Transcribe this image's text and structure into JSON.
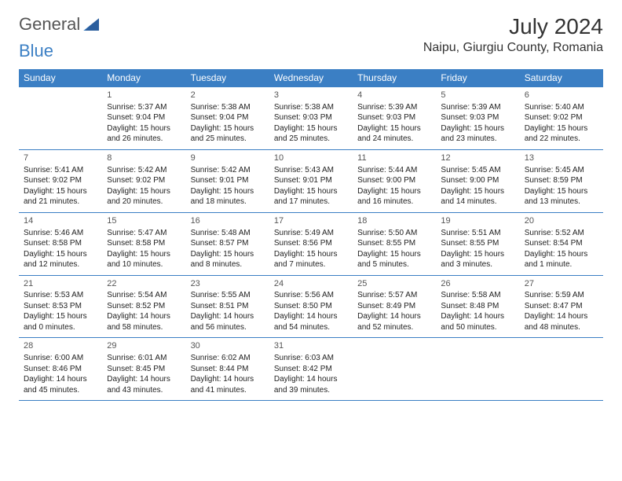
{
  "brand": {
    "part1": "General",
    "part2": "Blue"
  },
  "title": "July 2024",
  "location": "Naipu, Giurgiu County, Romania",
  "colors": {
    "header_bg": "#3b7fc4",
    "header_text": "#ffffff",
    "rule": "#3b7fc4",
    "text": "#222222",
    "daynum": "#555555",
    "page_bg": "#ffffff"
  },
  "weekdays": [
    "Sunday",
    "Monday",
    "Tuesday",
    "Wednesday",
    "Thursday",
    "Friday",
    "Saturday"
  ],
  "weeks": [
    [
      null,
      {
        "n": "1",
        "sr": "Sunrise: 5:37 AM",
        "ss": "Sunset: 9:04 PM",
        "d1": "Daylight: 15 hours",
        "d2": "and 26 minutes."
      },
      {
        "n": "2",
        "sr": "Sunrise: 5:38 AM",
        "ss": "Sunset: 9:04 PM",
        "d1": "Daylight: 15 hours",
        "d2": "and 25 minutes."
      },
      {
        "n": "3",
        "sr": "Sunrise: 5:38 AM",
        "ss": "Sunset: 9:03 PM",
        "d1": "Daylight: 15 hours",
        "d2": "and 25 minutes."
      },
      {
        "n": "4",
        "sr": "Sunrise: 5:39 AM",
        "ss": "Sunset: 9:03 PM",
        "d1": "Daylight: 15 hours",
        "d2": "and 24 minutes."
      },
      {
        "n": "5",
        "sr": "Sunrise: 5:39 AM",
        "ss": "Sunset: 9:03 PM",
        "d1": "Daylight: 15 hours",
        "d2": "and 23 minutes."
      },
      {
        "n": "6",
        "sr": "Sunrise: 5:40 AM",
        "ss": "Sunset: 9:02 PM",
        "d1": "Daylight: 15 hours",
        "d2": "and 22 minutes."
      }
    ],
    [
      {
        "n": "7",
        "sr": "Sunrise: 5:41 AM",
        "ss": "Sunset: 9:02 PM",
        "d1": "Daylight: 15 hours",
        "d2": "and 21 minutes."
      },
      {
        "n": "8",
        "sr": "Sunrise: 5:42 AM",
        "ss": "Sunset: 9:02 PM",
        "d1": "Daylight: 15 hours",
        "d2": "and 20 minutes."
      },
      {
        "n": "9",
        "sr": "Sunrise: 5:42 AM",
        "ss": "Sunset: 9:01 PM",
        "d1": "Daylight: 15 hours",
        "d2": "and 18 minutes."
      },
      {
        "n": "10",
        "sr": "Sunrise: 5:43 AM",
        "ss": "Sunset: 9:01 PM",
        "d1": "Daylight: 15 hours",
        "d2": "and 17 minutes."
      },
      {
        "n": "11",
        "sr": "Sunrise: 5:44 AM",
        "ss": "Sunset: 9:00 PM",
        "d1": "Daylight: 15 hours",
        "d2": "and 16 minutes."
      },
      {
        "n": "12",
        "sr": "Sunrise: 5:45 AM",
        "ss": "Sunset: 9:00 PM",
        "d1": "Daylight: 15 hours",
        "d2": "and 14 minutes."
      },
      {
        "n": "13",
        "sr": "Sunrise: 5:45 AM",
        "ss": "Sunset: 8:59 PM",
        "d1": "Daylight: 15 hours",
        "d2": "and 13 minutes."
      }
    ],
    [
      {
        "n": "14",
        "sr": "Sunrise: 5:46 AM",
        "ss": "Sunset: 8:58 PM",
        "d1": "Daylight: 15 hours",
        "d2": "and 12 minutes."
      },
      {
        "n": "15",
        "sr": "Sunrise: 5:47 AM",
        "ss": "Sunset: 8:58 PM",
        "d1": "Daylight: 15 hours",
        "d2": "and 10 minutes."
      },
      {
        "n": "16",
        "sr": "Sunrise: 5:48 AM",
        "ss": "Sunset: 8:57 PM",
        "d1": "Daylight: 15 hours",
        "d2": "and 8 minutes."
      },
      {
        "n": "17",
        "sr": "Sunrise: 5:49 AM",
        "ss": "Sunset: 8:56 PM",
        "d1": "Daylight: 15 hours",
        "d2": "and 7 minutes."
      },
      {
        "n": "18",
        "sr": "Sunrise: 5:50 AM",
        "ss": "Sunset: 8:55 PM",
        "d1": "Daylight: 15 hours",
        "d2": "and 5 minutes."
      },
      {
        "n": "19",
        "sr": "Sunrise: 5:51 AM",
        "ss": "Sunset: 8:55 PM",
        "d1": "Daylight: 15 hours",
        "d2": "and 3 minutes."
      },
      {
        "n": "20",
        "sr": "Sunrise: 5:52 AM",
        "ss": "Sunset: 8:54 PM",
        "d1": "Daylight: 15 hours",
        "d2": "and 1 minute."
      }
    ],
    [
      {
        "n": "21",
        "sr": "Sunrise: 5:53 AM",
        "ss": "Sunset: 8:53 PM",
        "d1": "Daylight: 15 hours",
        "d2": "and 0 minutes."
      },
      {
        "n": "22",
        "sr": "Sunrise: 5:54 AM",
        "ss": "Sunset: 8:52 PM",
        "d1": "Daylight: 14 hours",
        "d2": "and 58 minutes."
      },
      {
        "n": "23",
        "sr": "Sunrise: 5:55 AM",
        "ss": "Sunset: 8:51 PM",
        "d1": "Daylight: 14 hours",
        "d2": "and 56 minutes."
      },
      {
        "n": "24",
        "sr": "Sunrise: 5:56 AM",
        "ss": "Sunset: 8:50 PM",
        "d1": "Daylight: 14 hours",
        "d2": "and 54 minutes."
      },
      {
        "n": "25",
        "sr": "Sunrise: 5:57 AM",
        "ss": "Sunset: 8:49 PM",
        "d1": "Daylight: 14 hours",
        "d2": "and 52 minutes."
      },
      {
        "n": "26",
        "sr": "Sunrise: 5:58 AM",
        "ss": "Sunset: 8:48 PM",
        "d1": "Daylight: 14 hours",
        "d2": "and 50 minutes."
      },
      {
        "n": "27",
        "sr": "Sunrise: 5:59 AM",
        "ss": "Sunset: 8:47 PM",
        "d1": "Daylight: 14 hours",
        "d2": "and 48 minutes."
      }
    ],
    [
      {
        "n": "28",
        "sr": "Sunrise: 6:00 AM",
        "ss": "Sunset: 8:46 PM",
        "d1": "Daylight: 14 hours",
        "d2": "and 45 minutes."
      },
      {
        "n": "29",
        "sr": "Sunrise: 6:01 AM",
        "ss": "Sunset: 8:45 PM",
        "d1": "Daylight: 14 hours",
        "d2": "and 43 minutes."
      },
      {
        "n": "30",
        "sr": "Sunrise: 6:02 AM",
        "ss": "Sunset: 8:44 PM",
        "d1": "Daylight: 14 hours",
        "d2": "and 41 minutes."
      },
      {
        "n": "31",
        "sr": "Sunrise: 6:03 AM",
        "ss": "Sunset: 8:42 PM",
        "d1": "Daylight: 14 hours",
        "d2": "and 39 minutes."
      },
      null,
      null,
      null
    ]
  ]
}
